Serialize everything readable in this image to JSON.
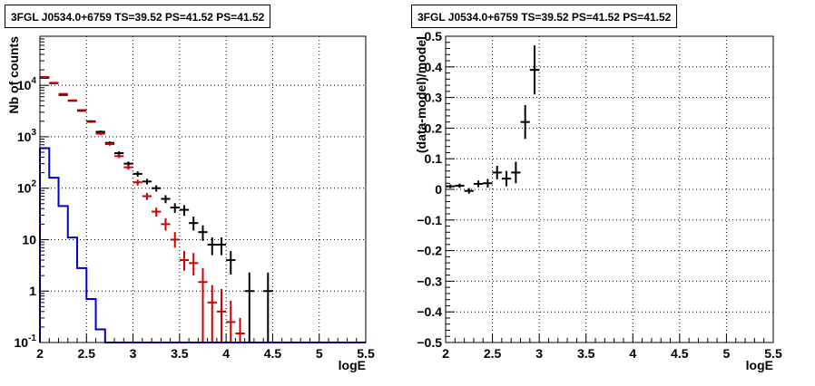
{
  "chart_data": [
    {
      "type": "histogram",
      "title": "3FGL J0534.0+6759 TS=39.52 PS=41.52 PS=41.52",
      "xlabel": "logE",
      "ylabel": "Nb of counts",
      "xlim": [
        2,
        5.5
      ],
      "ylim": [
        0.1,
        90000
      ],
      "yscale": "log",
      "grid": true,
      "x_ticks": [
        "2",
        "2.5",
        "3",
        "3.5",
        "4",
        "4.5",
        "5",
        "5.5"
      ],
      "y_ticks": [
        {
          "value": 0.1,
          "label": "10",
          "exp": "-1"
        },
        {
          "value": 1,
          "label": "1",
          "exp": ""
        },
        {
          "value": 10,
          "label": "10",
          "exp": ""
        },
        {
          "value": 100,
          "label": "10",
          "exp": "2"
        },
        {
          "value": 1000,
          "label": "10",
          "exp": "3"
        },
        {
          "value": 10000,
          "label": "10",
          "exp": "4"
        }
      ],
      "series": [
        {
          "color": "#000000",
          "style": "errorbars",
          "points": [
            {
              "x": 2.05,
              "y": 14000,
              "ylo": 13800,
              "yhi": 14200
            },
            {
              "x": 2.15,
              "y": 11000,
              "ylo": 10800,
              "yhi": 11200
            },
            {
              "x": 2.25,
              "y": 6500,
              "ylo": 6350,
              "yhi": 6650
            },
            {
              "x": 2.35,
              "y": 5000,
              "ylo": 4860,
              "yhi": 5140
            },
            {
              "x": 2.45,
              "y": 3200,
              "ylo": 3090,
              "yhi": 3310
            },
            {
              "x": 2.55,
              "y": 2000,
              "ylo": 1910,
              "yhi": 2090
            },
            {
              "x": 2.65,
              "y": 1250,
              "ylo": 1180,
              "yhi": 1320
            },
            {
              "x": 2.75,
              "y": 760,
              "ylo": 710,
              "yhi": 810
            },
            {
              "x": 2.85,
              "y": 480,
              "ylo": 440,
              "yhi": 520
            },
            {
              "x": 2.95,
              "y": 300,
              "ylo": 270,
              "yhi": 330
            },
            {
              "x": 3.05,
              "y": 190,
              "ylo": 168,
              "yhi": 212
            },
            {
              "x": 3.15,
              "y": 135,
              "ylo": 118,
              "yhi": 152
            },
            {
              "x": 3.25,
              "y": 100,
              "ylo": 86,
              "yhi": 114
            },
            {
              "x": 3.35,
              "y": 62,
              "ylo": 51,
              "yhi": 73
            },
            {
              "x": 3.45,
              "y": 42,
              "ylo": 33,
              "yhi": 51
            },
            {
              "x": 3.55,
              "y": 38,
              "ylo": 29,
              "yhi": 47
            },
            {
              "x": 3.65,
              "y": 21,
              "ylo": 15,
              "yhi": 28
            },
            {
              "x": 3.75,
              "y": 14,
              "ylo": 9.5,
              "yhi": 19
            },
            {
              "x": 3.85,
              "y": 8,
              "ylo": 5,
              "yhi": 11
            },
            {
              "x": 3.95,
              "y": 8,
              "ylo": 5,
              "yhi": 11
            },
            {
              "x": 4.05,
              "y": 4,
              "ylo": 2.1,
              "yhi": 6
            },
            {
              "x": 4.25,
              "y": 1,
              "ylo": 0.1,
              "yhi": 2.3
            },
            {
              "x": 4.45,
              "y": 1,
              "ylo": 0.1,
              "yhi": 2.3
            }
          ]
        },
        {
          "color": "#cc0000",
          "style": "errorbars",
          "points": [
            {
              "x": 2.05,
              "y": 14500,
              "ylo": 14300,
              "yhi": 14700
            },
            {
              "x": 2.15,
              "y": 11200,
              "ylo": 11000,
              "yhi": 11400
            },
            {
              "x": 2.25,
              "y": 6800,
              "ylo": 6650,
              "yhi": 6950
            },
            {
              "x": 2.35,
              "y": 5100,
              "ylo": 4950,
              "yhi": 5250
            },
            {
              "x": 2.45,
              "y": 3300,
              "ylo": 3190,
              "yhi": 3410
            },
            {
              "x": 2.55,
              "y": 1950,
              "ylo": 1860,
              "yhi": 2040
            },
            {
              "x": 2.65,
              "y": 1150,
              "ylo": 1080,
              "yhi": 1220
            },
            {
              "x": 2.75,
              "y": 720,
              "ylo": 670,
              "yhi": 770
            },
            {
              "x": 2.85,
              "y": 420,
              "ylo": 385,
              "yhi": 455
            },
            {
              "x": 2.95,
              "y": 255,
              "ylo": 230,
              "yhi": 280
            },
            {
              "x": 3.05,
              "y": 130,
              "ylo": 113,
              "yhi": 147
            },
            {
              "x": 3.15,
              "y": 70,
              "ylo": 59,
              "yhi": 81
            },
            {
              "x": 3.25,
              "y": 35,
              "ylo": 28,
              "yhi": 42
            },
            {
              "x": 3.35,
              "y": 20,
              "ylo": 15,
              "yhi": 26
            },
            {
              "x": 3.45,
              "y": 10,
              "ylo": 7,
              "yhi": 14
            },
            {
              "x": 3.55,
              "y": 4,
              "ylo": 2.5,
              "yhi": 6
            },
            {
              "x": 3.65,
              "y": 3.5,
              "ylo": 2,
              "yhi": 5.5
            },
            {
              "x": 3.75,
              "y": 1.5,
              "ylo": 0.1,
              "yhi": 2.8
            },
            {
              "x": 3.85,
              "y": 0.6,
              "ylo": 0.1,
              "yhi": 1.3
            },
            {
              "x": 3.95,
              "y": 0.4,
              "ylo": 0.1,
              "yhi": 1.1
            },
            {
              "x": 4.05,
              "y": 0.25,
              "ylo": 0.1,
              "yhi": 0.65
            },
            {
              "x": 4.15,
              "y": 0.15,
              "ylo": 0.1,
              "yhi": 0.3
            }
          ]
        },
        {
          "color": "#0000cc",
          "style": "step",
          "bins": [
            {
              "x0": 2.0,
              "x1": 2.1,
              "y": 600
            },
            {
              "x0": 2.1,
              "x1": 2.2,
              "y": 160
            },
            {
              "x0": 2.2,
              "x1": 2.3,
              "y": 45
            },
            {
              "x0": 2.3,
              "x1": 2.4,
              "y": 11
            },
            {
              "x0": 2.4,
              "x1": 2.5,
              "y": 2.8
            },
            {
              "x0": 2.5,
              "x1": 2.6,
              "y": 0.7
            },
            {
              "x0": 2.6,
              "x1": 2.7,
              "y": 0.18
            },
            {
              "x0": 2.7,
              "x1": 5.5,
              "y": 0.1
            }
          ]
        }
      ]
    },
    {
      "type": "scatter",
      "title": "3FGL J0534.0+6759 TS=39.52 PS=41.52 PS=41.52",
      "xlabel": "logE",
      "ylabel": "(data-model)/model",
      "xlim": [
        2,
        5.5
      ],
      "ylim": [
        -0.5,
        0.5
      ],
      "grid": true,
      "x_ticks": [
        "2",
        "2.5",
        "3",
        "3.5",
        "4",
        "4.5",
        "5",
        "5.5"
      ],
      "y_ticks": [
        "−0.5",
        "−0.4",
        "−0.3",
        "−0.2",
        "−0.1",
        "0",
        "0.1",
        "0.2",
        "0.3",
        "0.4",
        "0.5"
      ],
      "series": [
        {
          "color": "#000000",
          "style": "errorbars",
          "points": [
            {
              "x": 2.05,
              "y": 0.01,
              "ylo": 0.004,
              "yhi": 0.016
            },
            {
              "x": 2.15,
              "y": 0.012,
              "ylo": 0.005,
              "yhi": 0.019
            },
            {
              "x": 2.25,
              "y": -0.005,
              "ylo": -0.014,
              "yhi": 0.004
            },
            {
              "x": 2.35,
              "y": 0.018,
              "ylo": 0.007,
              "yhi": 0.029
            },
            {
              "x": 2.45,
              "y": 0.02,
              "ylo": 0.006,
              "yhi": 0.034
            },
            {
              "x": 2.55,
              "y": 0.055,
              "ylo": 0.033,
              "yhi": 0.077
            },
            {
              "x": 2.65,
              "y": 0.035,
              "ylo": 0.01,
              "yhi": 0.06
            },
            {
              "x": 2.75,
              "y": 0.055,
              "ylo": 0.02,
              "yhi": 0.09
            },
            {
              "x": 2.85,
              "y": 0.22,
              "ylo": 0.165,
              "yhi": 0.275
            },
            {
              "x": 2.95,
              "y": 0.39,
              "ylo": 0.31,
              "yhi": 0.47
            }
          ]
        }
      ]
    }
  ]
}
